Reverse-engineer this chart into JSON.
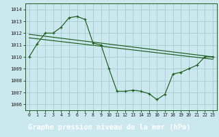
{
  "title": "Graphe pression niveau de la mer (hPa)",
  "bg_color": "#cce8ef",
  "plot_bg_color": "#cce8ef",
  "label_bg_color": "#2d6e2d",
  "label_text_color": "#ffffff",
  "grid_color": "#aacdd6",
  "line_color": "#1a5c1a",
  "xlim": [
    -0.5,
    23.5
  ],
  "ylim": [
    1005.5,
    1014.5
  ],
  "yticks": [
    1006,
    1007,
    1008,
    1009,
    1010,
    1011,
    1012,
    1013,
    1014
  ],
  "xticks": [
    0,
    1,
    2,
    3,
    4,
    5,
    6,
    7,
    8,
    9,
    10,
    11,
    12,
    13,
    14,
    15,
    16,
    17,
    18,
    19,
    20,
    21,
    22,
    23
  ],
  "curve1_x": [
    0,
    1,
    2,
    3,
    4,
    5,
    6,
    7,
    8,
    9,
    10,
    11,
    12,
    13,
    14,
    15,
    16,
    17,
    18,
    19,
    20,
    21,
    22,
    23
  ],
  "curve1_y": [
    1010.0,
    1011.1,
    1012.0,
    1012.0,
    1012.5,
    1013.3,
    1013.4,
    1013.15,
    1011.15,
    1011.0,
    1009.0,
    1007.1,
    1007.1,
    1007.2,
    1007.1,
    1006.9,
    1006.4,
    1006.85,
    1008.55,
    1008.7,
    1009.0,
    1009.3,
    1010.0,
    1010.0
  ],
  "line2_x": [
    0,
    23
  ],
  "line2_y": [
    1011.9,
    1010.0
  ],
  "line3_x": [
    0,
    23
  ],
  "line3_y": [
    1011.6,
    1009.8
  ],
  "title_fontsize": 7.5
}
